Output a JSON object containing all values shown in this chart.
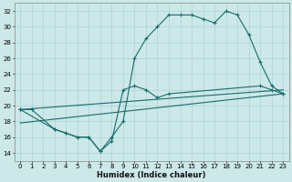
{
  "xlabel": "Humidex (Indice chaleur)",
  "bg_color": "#cce8e8",
  "line_color": "#1a6b6b",
  "grid_color": "#aad4d4",
  "xlim": [
    -0.5,
    23.5
  ],
  "ylim": [
    13,
    33
  ],
  "xticks": [
    0,
    1,
    2,
    3,
    4,
    5,
    6,
    7,
    8,
    9,
    10,
    11,
    12,
    13,
    14,
    15,
    16,
    17,
    18,
    19,
    20,
    21,
    22,
    23
  ],
  "yticks": [
    14,
    16,
    18,
    20,
    22,
    24,
    26,
    28,
    30,
    32
  ],
  "curve1_x": [
    0,
    1,
    3,
    4,
    5,
    6,
    7,
    8,
    9,
    10,
    11,
    12,
    13,
    14,
    15,
    16,
    17,
    18,
    19,
    20,
    21,
    22,
    23
  ],
  "curve1_y": [
    19.5,
    19.5,
    17.0,
    16.5,
    16.0,
    16.0,
    14.2,
    16.0,
    18.0,
    26.0,
    28.5,
    30.0,
    31.5,
    31.5,
    31.5,
    31.0,
    30.5,
    32.0,
    31.5,
    29.0,
    25.5,
    22.5,
    21.5
  ],
  "curve2_x": [
    0,
    3,
    4,
    5,
    6,
    7,
    8,
    9,
    10,
    11,
    12,
    13,
    21,
    22,
    23
  ],
  "curve2_y": [
    19.5,
    17.0,
    16.5,
    16.0,
    16.0,
    14.2,
    15.5,
    22.0,
    22.5,
    22.0,
    21.0,
    21.5,
    22.5,
    22.0,
    21.5
  ],
  "line1_x": [
    0,
    23
  ],
  "line1_y": [
    19.5,
    22.0
  ],
  "line2_x": [
    0,
    23
  ],
  "line2_y": [
    17.8,
    21.5
  ]
}
